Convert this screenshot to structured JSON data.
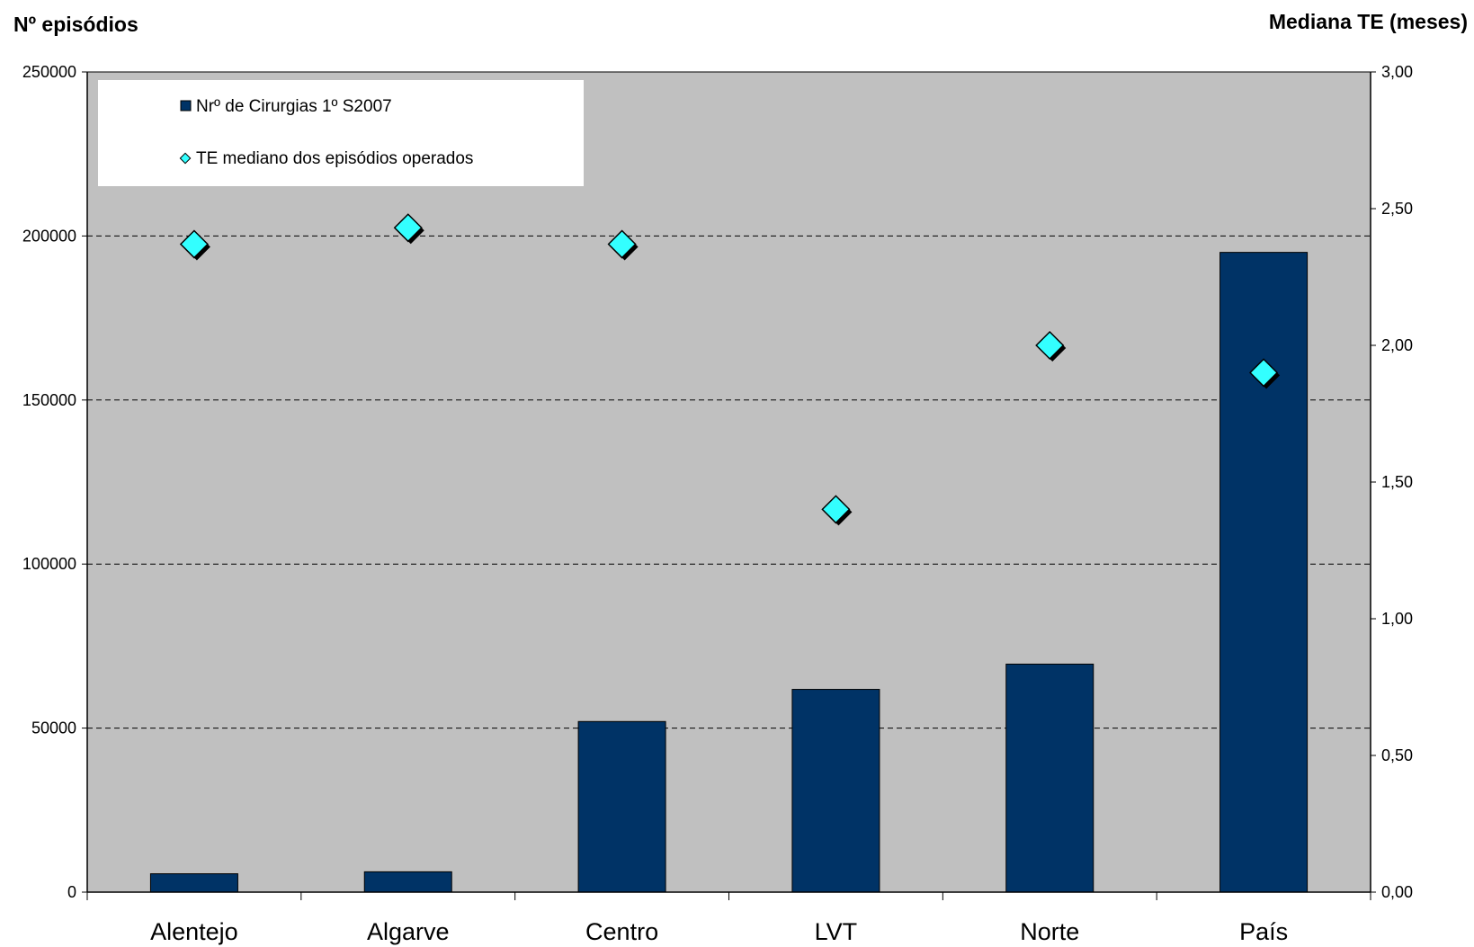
{
  "chart_data": {
    "type": "bar",
    "categories": [
      "Alentejo",
      "Algarve",
      "Centro",
      "LVT",
      "Norte",
      "País"
    ],
    "series": [
      {
        "name": "Nrº de Cirurgias 1º S2007",
        "kind": "bar",
        "axis": "left",
        "color": "#003366",
        "values": [
          5600,
          6200,
          52000,
          61800,
          69500,
          195000
        ]
      },
      {
        "name": "TE mediano dos episódios operados",
        "kind": "scatter",
        "marker": "diamond",
        "axis": "right",
        "color": "#33FFFF",
        "values": [
          2.37,
          2.43,
          2.37,
          1.4,
          2.0,
          1.9
        ]
      }
    ],
    "ylabel": "Nº episódios",
    "y2label": "Mediana TE (meses)",
    "ylim": [
      0,
      250000
    ],
    "y2lim": [
      0,
      3
    ],
    "yticks": [
      "0",
      "50000",
      "100000",
      "150000",
      "200000",
      "250000"
    ],
    "y2ticks": [
      "0,00",
      "0,50",
      "1,00",
      "1,50",
      "2,00",
      "2,50",
      "3,00"
    ],
    "grid": true,
    "legend_position": "top-left",
    "plot_background": "#C0C0C0"
  }
}
